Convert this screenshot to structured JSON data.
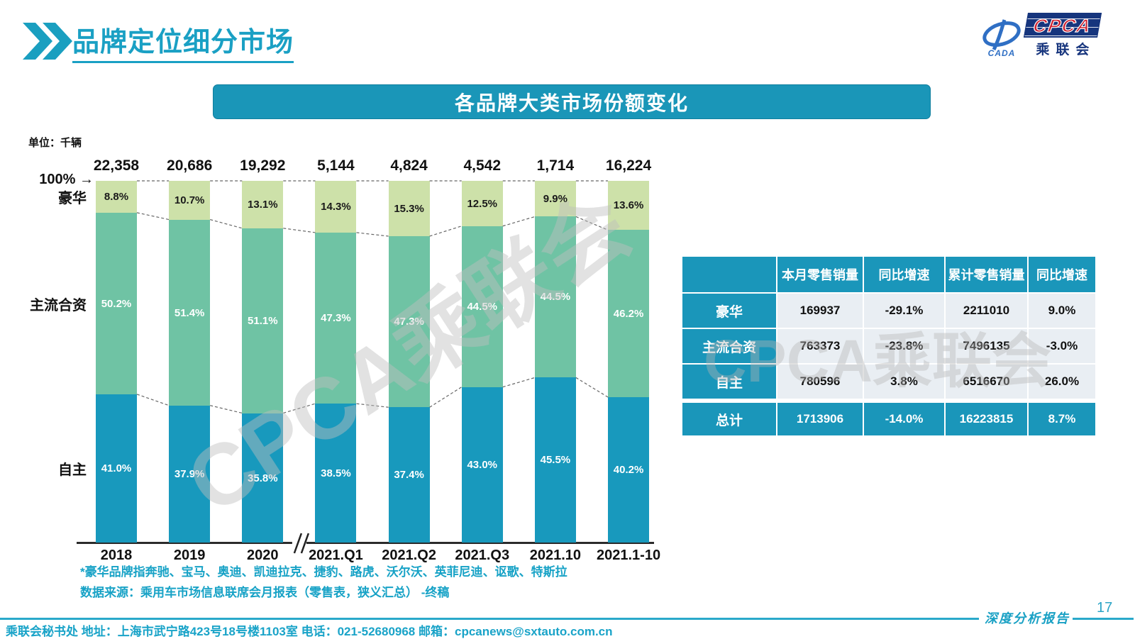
{
  "page": {
    "title": "品牌定位细分市场",
    "banner": "各品牌大类市场份额变化",
    "unit_label": "单位：千辆",
    "watermark": "CPCA乘联会",
    "page_number": "17",
    "report_label": "深度分析报告",
    "footer_text": "乘联会秘书处  地址：上海市武宁路423号18号楼1103室 电话：021-52680968  邮箱：cpcanews@sxtauto.com.cn"
  },
  "logo": {
    "cada": "CADA",
    "cpca": "CPCA",
    "cn": "乘联会"
  },
  "notes": [
    "*豪华品牌指奔驰、宝马、奥迪、凯迪拉克、捷豹、路虎、沃尔沃、英菲尼迪、讴歌、特斯拉",
    "数据来源：乘用车市场信息联席会月报表（零售表，狭义汇总） -终稿"
  ],
  "chart_data": {
    "type": "bar",
    "stacked": true,
    "percent_stack": true,
    "title": "各品牌大类市场份额变化",
    "unit": "千辆",
    "top_axis_label": "100%",
    "top_axis_arrow": "→",
    "ylim": [
      0,
      100
    ],
    "axis_break_between": [
      "2020",
      "2021.Q1"
    ],
    "categories": [
      "2018",
      "2019",
      "2020",
      "2021.Q1",
      "2021.Q2",
      "2021.Q3",
      "2021.10",
      "2021.1-10"
    ],
    "totals": [
      "22,358",
      "20,686",
      "19,292",
      "5,144",
      "4,824",
      "4,542",
      "1,714",
      "16,224"
    ],
    "series": [
      {
        "name": "豪华",
        "color": "#cde1a9",
        "label_color": "#1a1a1a",
        "values": [
          8.8,
          10.7,
          13.1,
          14.3,
          15.3,
          12.5,
          9.9,
          13.6
        ]
      },
      {
        "name": "主流合资",
        "color": "#6fc3a4",
        "label_color": "#ffffff",
        "values": [
          50.2,
          51.4,
          51.1,
          47.3,
          47.3,
          44.5,
          44.5,
          46.2
        ]
      },
      {
        "name": "自主",
        "color": "#1899bd",
        "label_color": "#ffffff",
        "values": [
          41.0,
          37.9,
          35.8,
          38.5,
          37.4,
          43.0,
          45.5,
          40.2
        ]
      }
    ]
  },
  "table": {
    "headers": [
      "",
      "本月零售销量",
      "同比增速",
      "累计零售销量",
      "同比增速"
    ],
    "rows": [
      {
        "label": "豪华",
        "total": false,
        "cells": [
          "169937",
          "-29.1%",
          "2211010",
          "9.0%"
        ]
      },
      {
        "label": "主流合资",
        "total": false,
        "cells": [
          "763373",
          "-23.8%",
          "7496135",
          "-3.0%"
        ]
      },
      {
        "label": "自主",
        "total": false,
        "cells": [
          "780596",
          "3.8%",
          "6516670",
          "26.0%"
        ]
      },
      {
        "label": "总计",
        "total": true,
        "cells": [
          "1713906",
          "-14.0%",
          "16223815",
          "8.7%"
        ]
      }
    ]
  },
  "colors": {
    "accent_teal": "#1a96b8",
    "title_teal": "#1aa0c4",
    "bar_luxury": "#cde1a9",
    "bar_mainstream": "#6fc3a4",
    "bar_domestic": "#1899bd",
    "table_cell_bg": "#e9eef3",
    "dashed_line": "#666666"
  }
}
